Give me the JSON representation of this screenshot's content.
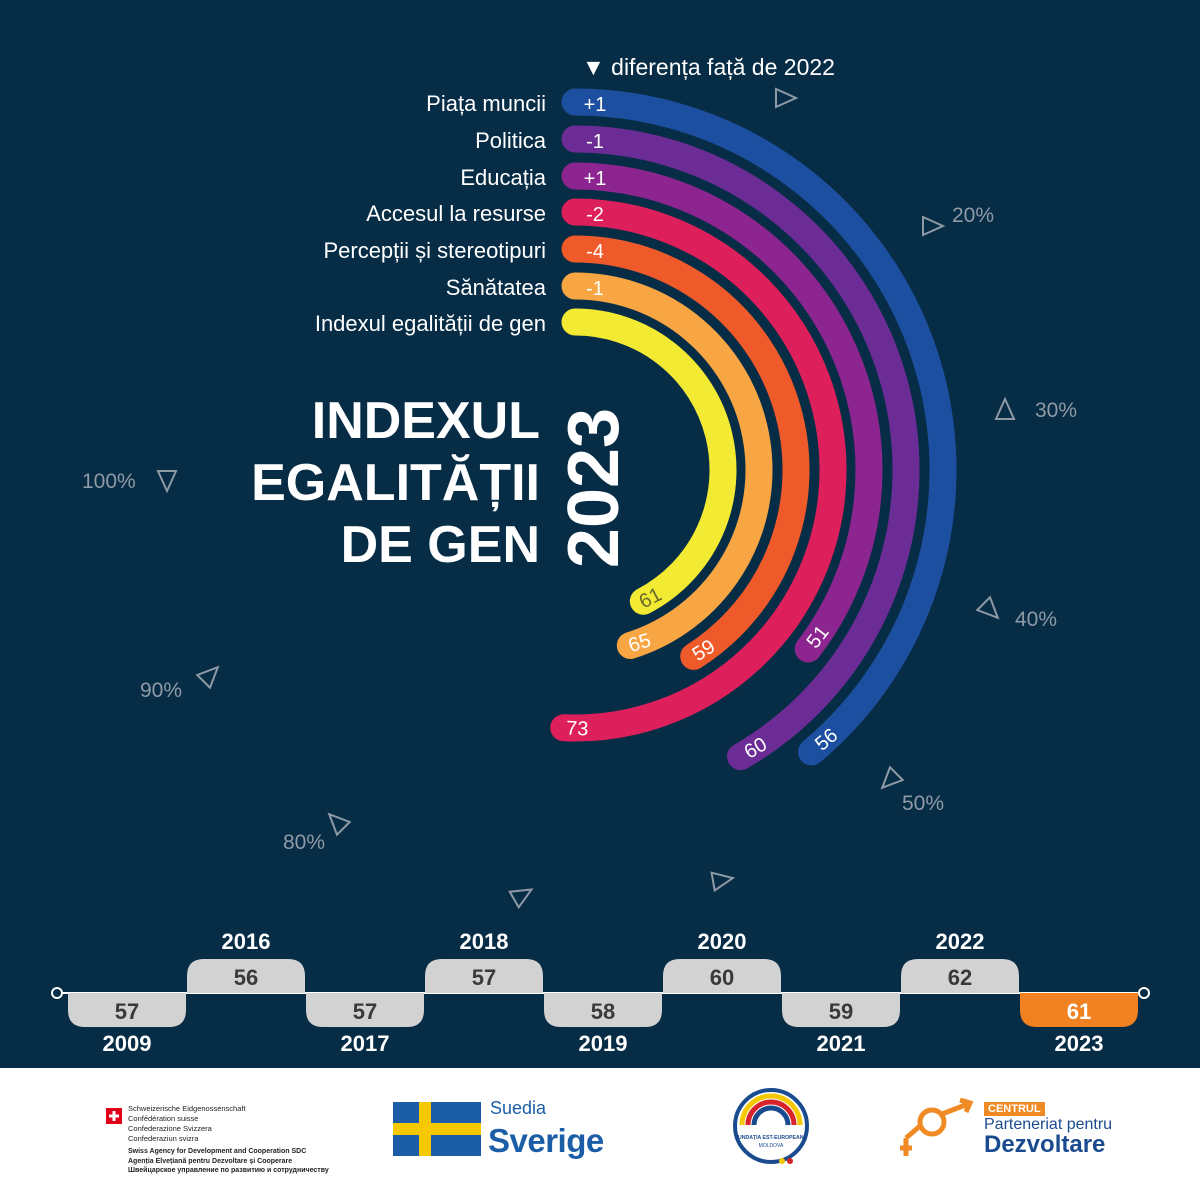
{
  "legend_header": "▼ diferența față de 2022",
  "title_lines": [
    "INDEXUL",
    "EGALITĂȚII",
    "DE GEN"
  ],
  "year": "2023",
  "colors": {
    "background": "#072c45",
    "arc_colors": [
      "#1d4fa0",
      "#6b2c95",
      "#8d2590",
      "#dd1f5b",
      "#ef5a2a",
      "#f8a644",
      "#f3ea34"
    ],
    "timeline_pill": "#d2d2d2",
    "timeline_highlight": "#f08221"
  },
  "chart_data": {
    "type": "radial-bar",
    "scale_ticks": [
      "20%",
      "30%",
      "40%",
      "50%",
      "80%",
      "90%",
      "100%"
    ],
    "categories": [
      {
        "label": "Piața muncii",
        "diff": "+1",
        "value": 56
      },
      {
        "label": "Politica",
        "diff": "-1",
        "value": 60
      },
      {
        "label": "Educația",
        "diff": "+1",
        "value": 51
      },
      {
        "label": "Accesul la resurse",
        "diff": "-2",
        "value": 73
      },
      {
        "label": "Percepții și stereotipuri",
        "diff": "-4",
        "value": 59
      },
      {
        "label": "Sănătatea",
        "diff": "-1",
        "value": 65
      },
      {
        "label": "Indexul egalității de gen",
        "diff": "",
        "value": 61
      }
    ],
    "timeline": [
      {
        "year": "2009",
        "value": 57
      },
      {
        "year": "2016",
        "value": 56
      },
      {
        "year": "2017",
        "value": 57
      },
      {
        "year": "2018",
        "value": 57
      },
      {
        "year": "2019",
        "value": 58
      },
      {
        "year": "2020",
        "value": 60
      },
      {
        "year": "2021",
        "value": 59
      },
      {
        "year": "2022",
        "value": 62
      },
      {
        "year": "2023",
        "value": 61
      }
    ]
  },
  "footer": {
    "swiss_lines": [
      "Schweizerische Eidgenossenschaft",
      "Confédération suisse",
      "Confederazione Svizzera",
      "Confederaziun svizra"
    ],
    "swiss_agency": [
      "Swiss Agency for Development and Cooperation SDC",
      "Agenția Elvețiană pentru Dezvoltare și Cooperare",
      "Швейцарское управление по развитию и сотрудничеству"
    ],
    "sweden_small": "Suedia",
    "sweden_big": "Sverige",
    "fest_name": "FUNDAȚIA EST-EUROPEANĂ",
    "fest_country": "MOLDOVA",
    "cpd_top": "CENTRUL",
    "cpd_mid": "Parteneriat pentru",
    "cpd_bot": "Dezvoltare"
  }
}
